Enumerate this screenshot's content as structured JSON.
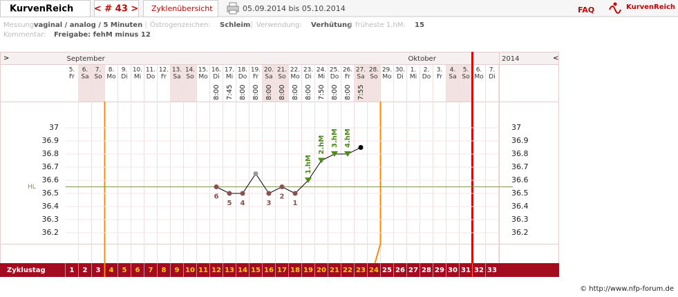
{
  "header": {
    "app_tab": "KurvenReich",
    "cycle_nav": "< # 43 >",
    "overview_tab": "Zyklenübersicht",
    "date_range": "05.09.2014 bis 05.10.2014",
    "faq": "FAQ",
    "logo": "KurvenReich"
  },
  "info": {
    "measurement_label": "Messung:",
    "measurement": "vaginal / analog / 5 Minuten",
    "estrogen_label": "Östrogenzeichen:",
    "estrogen": "Schleim",
    "use_label": "Verwendung:",
    "use": "Verhütung",
    "earliest_label": "früheste 1.hM:",
    "earliest": 15,
    "comment_label": "Kommentar:",
    "comment": "Freigabe: fehM minus 12"
  },
  "chart_data": {
    "type": "line",
    "nav_left": ">",
    "nav_right": "<",
    "year": "2014",
    "cycle_row_label": "Zyklustag",
    "days": [
      {
        "day": "5.",
        "weekday": "Fr",
        "time": null,
        "cycle_day": 1,
        "fertile": false,
        "month": "September"
      },
      {
        "day": "6.",
        "weekday": "Sa",
        "time": null,
        "cycle_day": 2,
        "fertile": false
      },
      {
        "day": "7.",
        "weekday": "So",
        "time": null,
        "cycle_day": 3,
        "fertile": false
      },
      {
        "day": "8.",
        "weekday": "Mo",
        "time": null,
        "cycle_day": 4,
        "fertile": true
      },
      {
        "day": "9.",
        "weekday": "Di",
        "time": null,
        "cycle_day": 5,
        "fertile": true
      },
      {
        "day": "10.",
        "weekday": "Mi",
        "time": null,
        "cycle_day": 6,
        "fertile": true
      },
      {
        "day": "11.",
        "weekday": "Do",
        "time": null,
        "cycle_day": 7,
        "fertile": true
      },
      {
        "day": "12.",
        "weekday": "Fr",
        "time": null,
        "cycle_day": 8,
        "fertile": true
      },
      {
        "day": "13.",
        "weekday": "Sa",
        "time": null,
        "cycle_day": 9,
        "fertile": true
      },
      {
        "day": "14.",
        "weekday": "So",
        "time": null,
        "cycle_day": 10,
        "fertile": true
      },
      {
        "day": "15.",
        "weekday": "Mo",
        "time": null,
        "cycle_day": 11,
        "fertile": true
      },
      {
        "day": "16.",
        "weekday": "Di",
        "time": "8:00",
        "cycle_day": 12,
        "fertile": true
      },
      {
        "day": "17.",
        "weekday": "Mi",
        "time": "7:45",
        "cycle_day": 13,
        "fertile": true
      },
      {
        "day": "18.",
        "weekday": "Do",
        "time": "8:00",
        "cycle_day": 14,
        "fertile": true
      },
      {
        "day": "19.",
        "weekday": "Fr",
        "time": "8:00",
        "cycle_day": 15,
        "fertile": true
      },
      {
        "day": "20.",
        "weekday": "Sa",
        "time": "8:00",
        "cycle_day": 16,
        "fertile": true
      },
      {
        "day": "21.",
        "weekday": "So",
        "time": "8:00",
        "cycle_day": 17,
        "fertile": true
      },
      {
        "day": "22.",
        "weekday": "Mo",
        "time": "8:00",
        "cycle_day": 18,
        "fertile": true
      },
      {
        "day": "23.",
        "weekday": "Di",
        "time": "8:00",
        "cycle_day": 19,
        "fertile": true
      },
      {
        "day": "24.",
        "weekday": "Mi",
        "time": "7:50",
        "cycle_day": 20,
        "fertile": true
      },
      {
        "day": "25.",
        "weekday": "Do",
        "time": "8:00",
        "cycle_day": 21,
        "fertile": true
      },
      {
        "day": "26.",
        "weekday": "Fr",
        "time": "8:00",
        "cycle_day": 22,
        "fertile": true
      },
      {
        "day": "27.",
        "weekday": "Sa",
        "time": "7:55",
        "cycle_day": 23,
        "fertile": true
      },
      {
        "day": "28.",
        "weekday": "So",
        "time": null,
        "cycle_day": 24,
        "fertile": true
      },
      {
        "day": "29.",
        "weekday": "Mo",
        "time": null,
        "cycle_day": 25,
        "fertile": false
      },
      {
        "day": "30.",
        "weekday": "Di",
        "time": null,
        "cycle_day": 26,
        "fertile": false
      },
      {
        "day": "1.",
        "weekday": "Mi",
        "time": null,
        "cycle_day": 27,
        "fertile": false,
        "month": "Oktober"
      },
      {
        "day": "2.",
        "weekday": "Do",
        "time": null,
        "cycle_day": 28,
        "fertile": false
      },
      {
        "day": "3.",
        "weekday": "Fr",
        "time": null,
        "cycle_day": 29,
        "fertile": false
      },
      {
        "day": "4.",
        "weekday": "Sa",
        "time": null,
        "cycle_day": 30,
        "fertile": false
      },
      {
        "day": "5.",
        "weekday": "So",
        "time": null,
        "cycle_day": 31,
        "fertile": false
      },
      {
        "day": "6.",
        "weekday": "Mo",
        "time": null,
        "cycle_day": 32,
        "fertile": false
      },
      {
        "day": "7.",
        "weekday": "Di",
        "time": null,
        "cycle_day": 33,
        "fertile": false
      }
    ],
    "series": [
      {
        "color": "#000000",
        "values": [
          null,
          null,
          null,
          null,
          null,
          null,
          null,
          null,
          null,
          null,
          null,
          36.55,
          36.5,
          36.5,
          36.65,
          36.5,
          36.55,
          36.5,
          36.6,
          36.75,
          36.8,
          36.8,
          36.85,
          null,
          null,
          null,
          null,
          null,
          null,
          null,
          null,
          null,
          null
        ],
        "marker_colors": [
          null,
          null,
          null,
          null,
          null,
          null,
          null,
          null,
          null,
          null,
          null,
          "#8b5050",
          "#8b5050",
          "#8b5050",
          "#999999",
          "#8b5050",
          "#8b5050",
          "#8b5050",
          "#4e8a1e",
          "#4e8a1e",
          "#4e8a1e",
          "#4e8a1e",
          "#000000",
          null,
          null,
          null,
          null,
          null,
          null,
          null,
          null,
          null,
          null
        ],
        "low_labels": [
          null,
          null,
          null,
          null,
          null,
          null,
          null,
          null,
          null,
          null,
          null,
          6,
          5,
          4,
          null,
          3,
          2,
          1,
          null,
          null,
          null,
          null,
          null,
          null,
          null,
          null,
          null,
          null,
          null,
          null,
          null,
          null,
          null
        ],
        "hm_labels": [
          null,
          null,
          null,
          null,
          null,
          null,
          null,
          null,
          null,
          null,
          null,
          null,
          null,
          null,
          null,
          null,
          null,
          null,
          "1.hM",
          "2.hM",
          "3.hM",
          "4.hM",
          null,
          null,
          null,
          null,
          null,
          null,
          null,
          null,
          null,
          null,
          null
        ]
      }
    ],
    "ylim": [
      36.1,
      37.2
    ],
    "yticks": [
      36.2,
      36.3,
      36.4,
      36.5,
      36.6,
      36.7,
      36.8,
      36.9,
      37
    ],
    "hl": 36.55,
    "hl_label": "HL",
    "hl_color": "#7a9a4a",
    "fertile_color": "#ffcc00",
    "weekend_color": "#f3e2e2"
  },
  "footer": {
    "credit": "© http://www.nfp-forum.de"
  }
}
